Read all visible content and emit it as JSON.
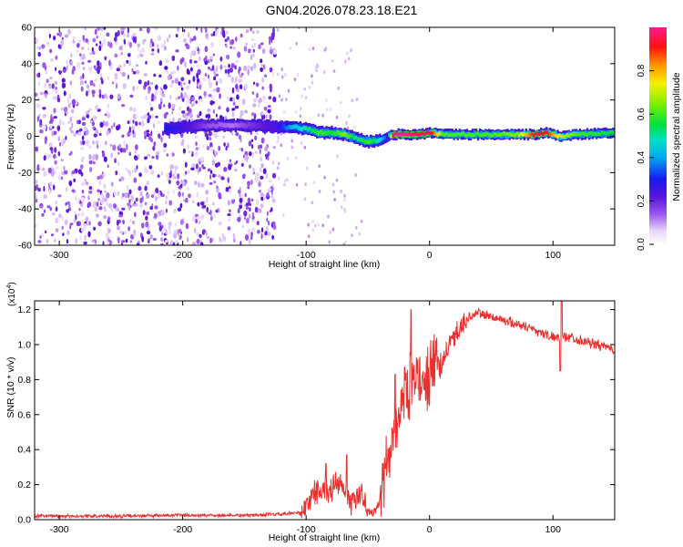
{
  "title": "GN04.2026.078.23.18.E21",
  "chart_data": [
    {
      "type": "heatmap",
      "title": "GN04.2026.078.23.18.E21",
      "xlabel": "Height of straight line (km)",
      "ylabel": "Frequency (Hz)",
      "xlim": [
        -320,
        150
      ],
      "ylim": [
        -60,
        60
      ],
      "x_ticks": [
        -300,
        -200,
        -100,
        0,
        100
      ],
      "y_ticks": [
        -60,
        -40,
        -20,
        0,
        20,
        40,
        60
      ],
      "colorbar": {
        "label": "Normalized spectral amplitude",
        "range": [
          0,
          1
        ],
        "ticks": [
          0.0,
          0.2,
          0.4,
          0.6,
          0.8
        ]
      },
      "ridge": {
        "description": "dominant frequency ridge versus height",
        "x": [
          -215,
          -200,
          -180,
          -160,
          -140,
          -125,
          -110,
          -100,
          -90,
          -80,
          -70,
          -60,
          -50,
          -40,
          -35,
          -30,
          -20,
          -10,
          0,
          10,
          30,
          50,
          70,
          85,
          95,
          105,
          120,
          150
        ],
        "frequency": [
          4,
          5,
          6,
          6,
          6,
          5,
          5,
          4,
          2,
          2,
          1,
          -1,
          -3,
          -2,
          0,
          1,
          1,
          1,
          2,
          1,
          1,
          1,
          1,
          1,
          2,
          0,
          1,
          2
        ],
        "amplitude": [
          0.3,
          0.25,
          0.15,
          0.12,
          0.2,
          0.25,
          0.45,
          0.5,
          0.6,
          0.55,
          0.65,
          0.5,
          0.6,
          0.45,
          0.3,
          1.0,
          1.0,
          0.95,
          0.95,
          0.6,
          0.6,
          0.6,
          0.65,
          0.95,
          0.9,
          0.7,
          0.6,
          0.55
        ]
      },
      "noise_region": [
        -320,
        -125
      ]
    },
    {
      "type": "line",
      "xlabel": "Height of straight line (km)",
      "ylabel": "SNR (10 * v/v)",
      "y_multiplier": "(x10^4)",
      "multiplier_base": "(x10",
      "multiplier_exp": "4",
      "xlim": [
        -320,
        150
      ],
      "ylim": [
        0,
        1.25
      ],
      "x_ticks": [
        -300,
        -200,
        -100,
        0,
        100
      ],
      "y_ticks": [
        0.0,
        0.2,
        0.4,
        0.6,
        0.8,
        1.0,
        1.2
      ],
      "series": [
        {
          "name": "SNR",
          "color": "#e8302c",
          "x": [
            -320,
            -250,
            -200,
            -150,
            -120,
            -105,
            -100,
            -95,
            -90,
            -85,
            -80,
            -75,
            -70,
            -65,
            -60,
            -55,
            -50,
            -45,
            -40,
            -35,
            -30,
            -25,
            -20,
            -15,
            -10,
            -5,
            0,
            10,
            20,
            30,
            40,
            50,
            60,
            70,
            80,
            90,
            100,
            105,
            110,
            120,
            130,
            140,
            150
          ],
          "y": [
            0.02,
            0.02,
            0.025,
            0.025,
            0.03,
            0.04,
            0.07,
            0.14,
            0.18,
            0.16,
            0.17,
            0.2,
            0.18,
            0.1,
            0.12,
            0.15,
            0.05,
            0.04,
            0.1,
            0.3,
            0.45,
            0.6,
            0.72,
            0.78,
            0.8,
            0.82,
            0.83,
            0.9,
            1.05,
            1.15,
            1.18,
            1.16,
            1.14,
            1.12,
            1.1,
            1.07,
            1.04,
            1.05,
            1.05,
            1.03,
            1.01,
            0.99,
            0.97
          ],
          "spikes": [
            {
              "x": -84,
              "y": 0.32
            },
            {
              "x": -67,
              "y": 0.37
            },
            {
              "x": -28,
              "y": 0.83
            },
            {
              "x": -15,
              "y": 1.2
            },
            {
              "x": 107,
              "y": 1.28
            },
            {
              "x": 106,
              "y": 0.85
            }
          ]
        }
      ]
    }
  ]
}
